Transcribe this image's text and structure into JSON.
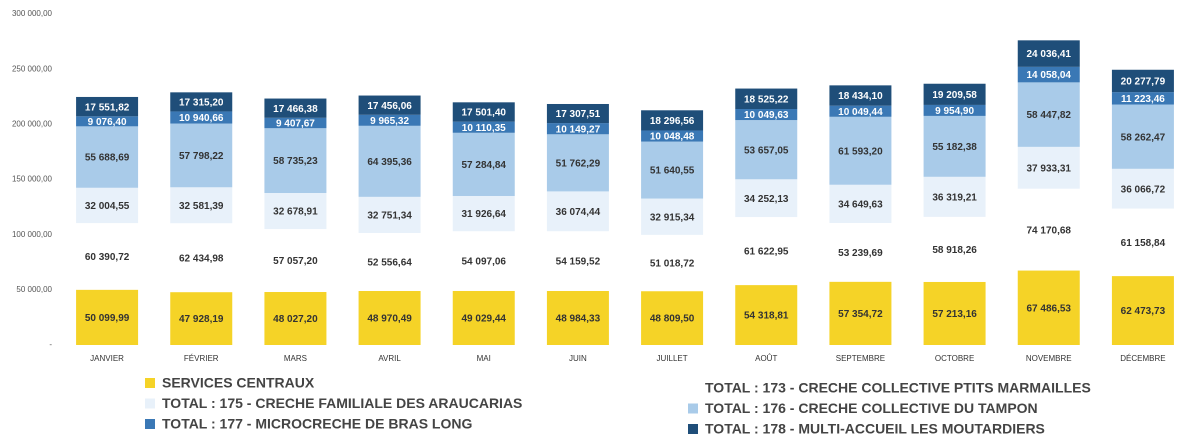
{
  "chart_data": {
    "type": "stacked_bar",
    "categories": [
      "JANVIER",
      "FÉVRIER",
      "MARS",
      "AVRIL",
      "MAI",
      "JUIN",
      "JUILLET",
      "AOÛT",
      "SEPTEMBRE",
      "OCTOBRE",
      "NOVEMBRE",
      "DÉCEMBRE"
    ],
    "series": [
      {
        "name": "SERVICES CENTRAUX",
        "color": "#f5d327",
        "values": [
          50099.99,
          47928.19,
          48027.2,
          48970.49,
          49029.44,
          48984.33,
          48809.5,
          54318.81,
          57354.72,
          57213.16,
          67486.53,
          62473.73
        ],
        "value_labels": [
          "50 099,99",
          "47 928,19",
          "48 027,20",
          "48 970,49",
          "49 029,44",
          "48 984,33",
          "48 809,50",
          "54 318,81",
          "57 354,72",
          "57 213,16",
          "67 486,53",
          "62 473,73"
        ]
      },
      {
        "name": "TOTAL : 173 - CRECHE COLLECTIVE PTITS MARMAILLES",
        "color": "#ffffff",
        "values": [
          60390.72,
          62434.98,
          57057.2,
          52556.64,
          54097.06,
          54159.52,
          51018.72,
          61622.95,
          53239.69,
          58918.26,
          74170.68,
          61158.84
        ],
        "value_labels": [
          "60 390,72",
          "62 434,98",
          "57 057,20",
          "52 556,64",
          "54 097,06",
          "54 159,52",
          "51 018,72",
          "61 622,95",
          "53 239,69",
          "58 918,26",
          "74 170,68",
          "61 158,84"
        ]
      },
      {
        "name": "TOTAL : 175 - CRECHE FAMILIALE DES ARAUCARIAS",
        "color": "#e8f1fa",
        "values": [
          32004.55,
          32581.39,
          32678.91,
          32751.34,
          31926.64,
          36074.44,
          32915.34,
          34252.13,
          34649.63,
          36319.21,
          37933.31,
          36066.72
        ],
        "value_labels": [
          "32 004,55",
          "32 581,39",
          "32 678,91",
          "32 751,34",
          "31 926,64",
          "36 074,44",
          "32 915,34",
          "34 252,13",
          "34 649,63",
          "36 319,21",
          "37 933,31",
          "36 066,72"
        ]
      },
      {
        "name": "TOTAL : 176 - CRECHE COLLECTIVE DU TAMPON",
        "color": "#a9cbe9",
        "values": [
          55688.69,
          57798.22,
          58735.23,
          64395.36,
          57284.84,
          51762.29,
          51640.55,
          53657.05,
          61593.2,
          55182.38,
          58447.82,
          58262.47
        ],
        "value_labels": [
          "55 688,69",
          "57 798,22",
          "58 735,23",
          "64 395,36",
          "57 284,84",
          "51 762,29",
          "51 640,55",
          "53 657,05",
          "61 593,20",
          "55 182,38",
          "58 447,82",
          "58 262,47"
        ]
      },
      {
        "name": "TOTAL : 177 - MICROCRECHE DE BRAS LONG",
        "color": "#3a78b5",
        "values": [
          9076.4,
          10940.66,
          9407.67,
          9965.32,
          10110.35,
          10149.27,
          10048.48,
          10049.63,
          10049.44,
          9954.9,
          14058.04,
          11223.46
        ],
        "value_labels": [
          "9 076,40",
          "10 940,66",
          "9 407,67",
          "9 965,32",
          "10 110,35",
          "10 149,27",
          "10 048,48",
          "10 049,63",
          "10 049,44",
          "9 954,90",
          "14 058,04",
          "11 223,46"
        ]
      },
      {
        "name": "TOTAL : 178 - MULTI-ACCUEIL LES MOUTARDIERS",
        "color": "#1f4e79",
        "values": [
          17551.82,
          17315.2,
          17466.38,
          17456.06,
          17501.4,
          17307.51,
          18296.56,
          18525.22,
          18434.1,
          19209.58,
          24036.41,
          20277.79
        ],
        "value_labels": [
          "17 551,82",
          "17 315,20",
          "17 466,38",
          "17 456,06",
          "17 501,40",
          "17 307,51",
          "18 296,56",
          "18 525,22",
          "18 434,10",
          "19 209,58",
          "24 036,41",
          "20 277,79"
        ]
      }
    ],
    "ylim": [
      0,
      300000
    ],
    "yticks": [
      {
        "value": 0,
        "label": "-"
      },
      {
        "value": 50000,
        "label": "50 000,00"
      },
      {
        "value": 100000,
        "label": "100 000,00"
      },
      {
        "value": 150000,
        "label": "150 000,00"
      },
      {
        "value": 200000,
        "label": "200 000,00"
      },
      {
        "value": 250000,
        "label": "250 000,00"
      },
      {
        "value": 300000,
        "label": "300 000,00"
      }
    ],
    "grid": false
  }
}
